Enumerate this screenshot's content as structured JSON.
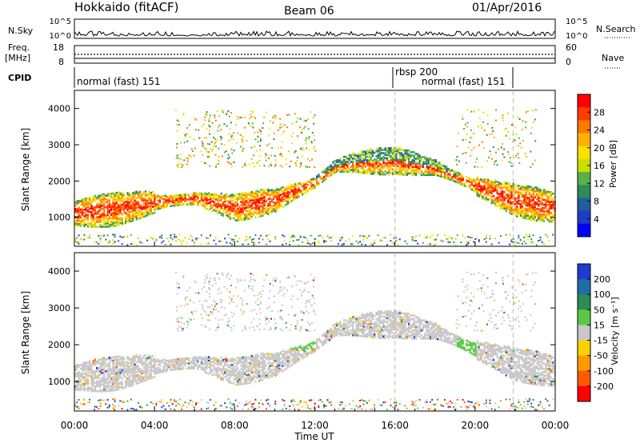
{
  "header": {
    "station": "Hokkaido (fitACF)",
    "beam": "Beam 06",
    "date": "01/Apr/2016"
  },
  "panels": {
    "nsky": {
      "label": "N.Sky",
      "ticks": [
        "10^5",
        "10^0"
      ],
      "right_label": "N.Search",
      "right_ticks": [
        "10^5",
        "10^0"
      ]
    },
    "freq": {
      "label_top": "Freq.",
      "label_unit": "[MHz]",
      "ticks": [
        "18",
        "8"
      ],
      "right_label": "Nave",
      "right_ticks": [
        "60",
        "0"
      ]
    },
    "cpid": {
      "label": "CPID",
      "segments": [
        "normal (fast) 151",
        "rbsp 200",
        "normal (fast) 151"
      ]
    }
  },
  "colorbars": {
    "power": {
      "label": "Power [dB]",
      "ticks": [
        "28",
        "24",
        "20",
        "16",
        "12",
        "8",
        "4"
      ],
      "colors": [
        "#ff0000",
        "#ff3c00",
        "#ff7a00",
        "#ffb000",
        "#ffe000",
        "#c8e000",
        "#5ab04a",
        "#2e8b57",
        "#1f5fa0",
        "#1e3cc8",
        "#0000ff"
      ]
    },
    "velocity": {
      "label": "Velocity [m s⁻¹]",
      "ticks": [
        "200",
        "100",
        "50",
        "15",
        "-15",
        "-50",
        "-100",
        "-200"
      ],
      "colors": [
        "#1f3bd0",
        "#1e6fa8",
        "#2e8b57",
        "#5ac845",
        "#c8c8c8",
        "#ffd000",
        "#ff9a00",
        "#ff5a00",
        "#ff0000"
      ]
    }
  },
  "chart_data": [
    {
      "type": "heatmap",
      "title": "Power",
      "ylabel": "Slant Range [km]",
      "xlabel": "Time UT",
      "xlim": [
        0,
        24
      ],
      "ylim": [
        200,
        4500
      ],
      "x_ticks": [
        "00:00",
        "04:00",
        "08:00",
        "12:00",
        "16:00",
        "20:00",
        "00:00"
      ],
      "y_ticks": [
        "1000",
        "2000",
        "3000",
        "4000"
      ],
      "main_echo_range_km": [
        [
          0,
          1150
        ],
        [
          2,
          1250
        ],
        [
          4,
          1450
        ],
        [
          6,
          1550
        ],
        [
          8,
          1300
        ],
        [
          10,
          1500
        ],
        [
          12,
          2000
        ],
        [
          13,
          2450
        ],
        [
          14,
          2550
        ],
        [
          16,
          2600
        ],
        [
          18,
          2400
        ],
        [
          20,
          1900
        ],
        [
          22,
          1500
        ],
        [
          24,
          1300
        ]
      ],
      "vertical_markers_hours": [
        16.0,
        21.9
      ]
    },
    {
      "type": "heatmap",
      "title": "Velocity",
      "ylabel": "Slant Range [km]",
      "xlabel": "Time UT",
      "xlim": [
        0,
        24
      ],
      "ylim": [
        200,
        4500
      ],
      "x_ticks": [
        "00:00",
        "04:00",
        "08:00",
        "12:00",
        "16:00",
        "20:00",
        "00:00"
      ],
      "y_ticks": [
        "1000",
        "2000",
        "3000",
        "4000"
      ],
      "vertical_markers_hours": [
        16.0,
        21.9
      ]
    }
  ],
  "axis": {
    "time_label": "Time UT"
  }
}
